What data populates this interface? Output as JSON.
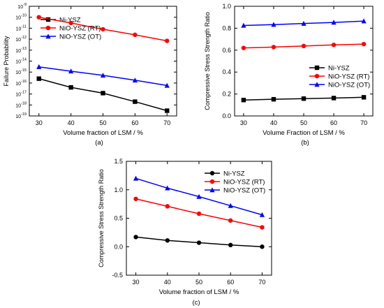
{
  "chart_data": [
    {
      "id": "a",
      "type": "line",
      "panel_label": "(a)",
      "xlabel": "Volume fraction of LSM / %",
      "ylabel": "Failure Probability",
      "xlim": [
        27,
        73
      ],
      "xticks": [
        30,
        40,
        50,
        60,
        70
      ],
      "yscale": "log",
      "ylim": [
        1e-19,
        1e-09
      ],
      "ytick_exponents": [
        -19,
        -18,
        -17,
        -16,
        -15,
        -14,
        -13,
        -12,
        -11,
        -10,
        -9
      ],
      "ytick_base": "10",
      "legend_position": "top-right",
      "grid": false,
      "x": [
        30,
        40,
        50,
        60,
        70
      ],
      "series": [
        {
          "name": "Ni-YSZ",
          "color": "#000000",
          "marker": "square",
          "values": [
            2.5e-16,
            4e-17,
            1.2e-17,
            2e-18,
            3e-19
          ]
        },
        {
          "name": "NiO-YSZ (RT)",
          "color": "#ff0000",
          "marker": "circle",
          "values": [
            1e-10,
            3e-11,
            8e-12,
            2.5e-12,
            7e-13
          ]
        },
        {
          "name": "NiO-YSZ (OT)",
          "color": "#0000ff",
          "marker": "triangle",
          "values": [
            3e-15,
            1.2e-15,
            5e-16,
            1.8e-16,
            6e-17
          ]
        }
      ]
    },
    {
      "id": "b",
      "type": "line",
      "panel_label": "(b)",
      "xlabel": "Volume Fraction of LSM / %",
      "ylabel": "Compressive Stress Strength Ratio",
      "xlim": [
        27,
        73
      ],
      "xticks": [
        30,
        40,
        50,
        60,
        70
      ],
      "ylim": [
        0,
        1.0
      ],
      "yticks": [
        "0.0",
        "0.2",
        "0.4",
        "0.6",
        "0.8",
        "1.0"
      ],
      "legend_position": "center-right",
      "grid": false,
      "x": [
        30,
        40,
        50,
        60,
        70
      ],
      "series": [
        {
          "name": "Ni-YSZ",
          "color": "#000000",
          "marker": "square",
          "values": [
            0.145,
            0.152,
            0.158,
            0.163,
            0.17
          ]
        },
        {
          "name": "NiO-YSZ (RT)",
          "color": "#ff0000",
          "marker": "circle",
          "values": [
            0.62,
            0.628,
            0.638,
            0.648,
            0.655
          ]
        },
        {
          "name": "NiO-YSZ (OT)",
          "color": "#0000ff",
          "marker": "triangle",
          "values": [
            0.825,
            0.833,
            0.843,
            0.853,
            0.865
          ]
        }
      ]
    },
    {
      "id": "c",
      "type": "line",
      "panel_label": "(c)",
      "xlabel": "Volume fraction of LSM / %",
      "ylabel": "Compressive Stress Strength Ratio",
      "xlim": [
        27,
        73
      ],
      "xticks": [
        30,
        40,
        50,
        60,
        70
      ],
      "ylim": [
        -0.5,
        1.5
      ],
      "yticks": [
        "-0.5",
        "0.0",
        "0.5",
        "1.0",
        "1.5"
      ],
      "legend_position": "top-right",
      "grid": false,
      "x": [
        30,
        40,
        50,
        60,
        70
      ],
      "series": [
        {
          "name": "Ni-YSZ",
          "color": "#000000",
          "marker": "circle",
          "values": [
            0.17,
            0.11,
            0.07,
            0.03,
            0.0
          ]
        },
        {
          "name": "NiO-YSZ (RT)",
          "color": "#ff0000",
          "marker": "circle",
          "values": [
            0.84,
            0.71,
            0.58,
            0.46,
            0.34
          ]
        },
        {
          "name": "NiO-YSZ (OT)",
          "color": "#0000ff",
          "marker": "triangle",
          "values": [
            1.2,
            1.03,
            0.88,
            0.72,
            0.56
          ]
        }
      ]
    }
  ]
}
